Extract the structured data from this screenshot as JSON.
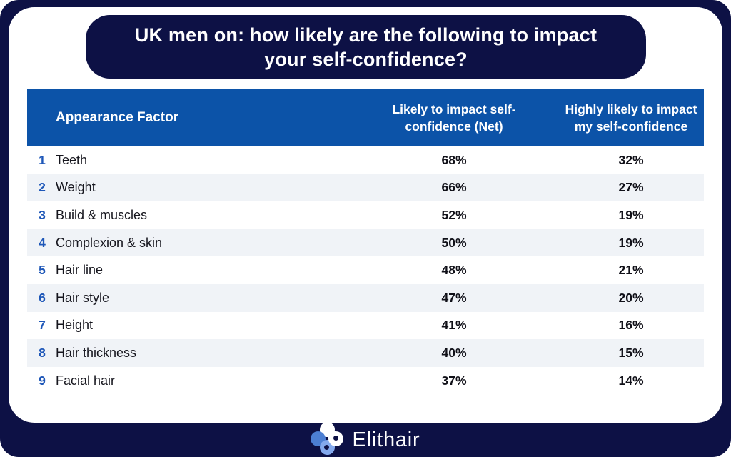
{
  "title": {
    "line1": "UK men on: how likely are the following to impact",
    "line2": "your self-confidence?"
  },
  "table": {
    "headers": {
      "factor": "Appearance Factor",
      "net": "Likely to impact self-confidence (Net)",
      "highly": "Highly likely to impact my self-confidence"
    },
    "rows": [
      {
        "rank": "1",
        "factor": "Teeth",
        "net": "68%",
        "highly": "32%"
      },
      {
        "rank": "2",
        "factor": "Weight",
        "net": "66%",
        "highly": "27%"
      },
      {
        "rank": "3",
        "factor": "Build & muscles",
        "net": "52%",
        "highly": "19%"
      },
      {
        "rank": "4",
        "factor": "Complexion & skin",
        "net": "50%",
        "highly": "19%"
      },
      {
        "rank": "5",
        "factor": "Hair line",
        "net": "48%",
        "highly": "21%"
      },
      {
        "rank": "6",
        "factor": "Hair style",
        "net": "47%",
        "highly": "20%"
      },
      {
        "rank": "7",
        "factor": "Height",
        "net": "41%",
        "highly": "16%"
      },
      {
        "rank": "8",
        "factor": "Hair thickness",
        "net": "40%",
        "highly": "15%"
      },
      {
        "rank": "9",
        "factor": "Facial hair",
        "net": "37%",
        "highly": "14%"
      }
    ]
  },
  "footer": {
    "brand": "Elithair"
  },
  "colors": {
    "navy": "#0d1145",
    "header_blue": "#0c53a8",
    "rank_blue": "#1e57b8",
    "alt_row": "#f0f3f7",
    "logo_blue": "#4c7fd3",
    "logo_light_blue": "#83a9ed"
  },
  "chart_data": {
    "type": "table",
    "title": "UK men on: how likely are the following to impact your self-confidence?",
    "columns": [
      "Appearance Factor",
      "Likely to impact self-confidence (Net)",
      "Highly likely to impact my self-confidence"
    ],
    "rows": [
      {
        "rank": 1,
        "factor": "Teeth",
        "likely_net_pct": 68,
        "highly_likely_pct": 32
      },
      {
        "rank": 2,
        "factor": "Weight",
        "likely_net_pct": 66,
        "highly_likely_pct": 27
      },
      {
        "rank": 3,
        "factor": "Build & muscles",
        "likely_net_pct": 52,
        "highly_likely_pct": 19
      },
      {
        "rank": 4,
        "factor": "Complexion & skin",
        "likely_net_pct": 50,
        "highly_likely_pct": 19
      },
      {
        "rank": 5,
        "factor": "Hair line",
        "likely_net_pct": 48,
        "highly_likely_pct": 21
      },
      {
        "rank": 6,
        "factor": "Hair style",
        "likely_net_pct": 47,
        "highly_likely_pct": 20
      },
      {
        "rank": 7,
        "factor": "Height",
        "likely_net_pct": 41,
        "highly_likely_pct": 16
      },
      {
        "rank": 8,
        "factor": "Hair thickness",
        "likely_net_pct": 40,
        "highly_likely_pct": 15
      },
      {
        "rank": 9,
        "factor": "Facial hair",
        "likely_net_pct": 37,
        "highly_likely_pct": 14
      }
    ],
    "legend_position": "none",
    "grid": false,
    "brand": "Elithair"
  }
}
